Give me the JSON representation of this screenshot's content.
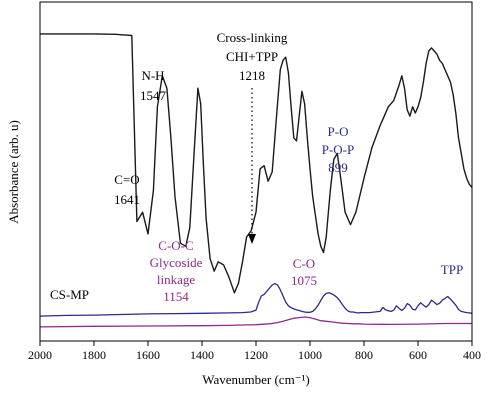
{
  "chart_data": {
    "type": "line",
    "xlabel": "Wavenumber (cm⁻¹)",
    "ylabel": "Absorbance (arb. u)",
    "xlim": [
      2000,
      400
    ],
    "x_reversed": true,
    "xticks": [
      2000,
      1800,
      1600,
      1400,
      1200,
      1000,
      800,
      600,
      400
    ],
    "yticks": [],
    "ylim": [
      0,
      1
    ],
    "grid": false,
    "colors": {
      "cs_mp": "#1a1a1a",
      "tpp": "#2b2b8c",
      "chi": "#8e2a8e"
    },
    "series": [
      {
        "name": "CS-MP",
        "color": "#1a1a1a",
        "x": [
          2000,
          1900,
          1800,
          1720,
          1690,
          1660,
          1641,
          1620,
          1600,
          1580,
          1565,
          1547,
          1530,
          1515,
          1500,
          1480,
          1460,
          1445,
          1430,
          1415,
          1405,
          1395,
          1385,
          1370,
          1355,
          1340,
          1320,
          1300,
          1280,
          1265,
          1250,
          1235,
          1218,
          1200,
          1185,
          1170,
          1155,
          1140,
          1125,
          1110,
          1100,
          1090,
          1080,
          1070,
          1060,
          1050,
          1040,
          1030,
          1020,
          1010,
          1000,
          990,
          980,
          970,
          960,
          950,
          940,
          925,
          912,
          899,
          885,
          870,
          850,
          830,
          800,
          770,
          740,
          710,
          690,
          670,
          660,
          650,
          640,
          630,
          620,
          610,
          600,
          590,
          580,
          570,
          560,
          550,
          540,
          530,
          520,
          510,
          500,
          490,
          480,
          470,
          460,
          450,
          440,
          430,
          420,
          410,
          400
        ],
        "values": [
          0.955,
          0.955,
          0.955,
          0.954,
          0.952,
          0.95,
          0.35,
          0.38,
          0.31,
          0.45,
          0.72,
          0.82,
          0.78,
          0.62,
          0.43,
          0.28,
          0.27,
          0.33,
          0.56,
          0.78,
          0.73,
          0.54,
          0.36,
          0.23,
          0.19,
          0.22,
          0.21,
          0.17,
          0.12,
          0.15,
          0.22,
          0.3,
          0.32,
          0.38,
          0.52,
          0.53,
          0.48,
          0.51,
          0.68,
          0.84,
          0.87,
          0.88,
          0.83,
          0.72,
          0.62,
          0.61,
          0.69,
          0.77,
          0.73,
          0.62,
          0.52,
          0.43,
          0.37,
          0.31,
          0.27,
          0.25,
          0.3,
          0.45,
          0.55,
          0.57,
          0.48,
          0.38,
          0.34,
          0.38,
          0.49,
          0.59,
          0.66,
          0.72,
          0.74,
          0.79,
          0.82,
          0.78,
          0.71,
          0.69,
          0.72,
          0.7,
          0.72,
          0.75,
          0.8,
          0.86,
          0.9,
          0.91,
          0.9,
          0.89,
          0.87,
          0.86,
          0.84,
          0.82,
          0.8,
          0.76,
          0.7,
          0.62,
          0.57,
          0.52,
          0.49,
          0.47,
          0.46
        ]
      },
      {
        "name": "TPP",
        "color": "#2b2b8c",
        "x": [
          2000,
          1900,
          1800,
          1700,
          1600,
          1500,
          1400,
          1300,
          1250,
          1220,
          1200,
          1190,
          1180,
          1170,
          1160,
          1150,
          1140,
          1130,
          1120,
          1110,
          1100,
          1090,
          1080,
          1070,
          1060,
          1050,
          1040,
          1030,
          1020,
          1010,
          1000,
          990,
          980,
          970,
          960,
          950,
          940,
          930,
          920,
          910,
          900,
          890,
          880,
          870,
          860,
          850,
          840,
          830,
          820,
          810,
          800,
          780,
          760,
          740,
          730,
          720,
          710,
          700,
          690,
          680,
          670,
          660,
          650,
          640,
          630,
          620,
          610,
          600,
          590,
          580,
          570,
          560,
          550,
          540,
          530,
          520,
          510,
          500,
          490,
          480,
          470,
          460,
          450,
          440,
          430,
          420,
          410,
          400
        ],
        "values": [
          0.045,
          0.047,
          0.048,
          0.05,
          0.052,
          0.053,
          0.054,
          0.055,
          0.056,
          0.058,
          0.064,
          0.09,
          0.11,
          0.115,
          0.125,
          0.135,
          0.145,
          0.15,
          0.145,
          0.13,
          0.11,
          0.09,
          0.078,
          0.072,
          0.068,
          0.065,
          0.063,
          0.06,
          0.058,
          0.057,
          0.057,
          0.06,
          0.068,
          0.08,
          0.095,
          0.11,
          0.118,
          0.12,
          0.117,
          0.112,
          0.105,
          0.095,
          0.082,
          0.07,
          0.062,
          0.058,
          0.058,
          0.056,
          0.055,
          0.056,
          0.056,
          0.056,
          0.058,
          0.06,
          0.073,
          0.065,
          0.062,
          0.06,
          0.064,
          0.078,
          0.07,
          0.063,
          0.07,
          0.085,
          0.08,
          0.067,
          0.065,
          0.078,
          0.088,
          0.08,
          0.074,
          0.082,
          0.096,
          0.09,
          0.082,
          0.086,
          0.096,
          0.102,
          0.108,
          0.1,
          0.09,
          0.08,
          0.066,
          0.06,
          0.058,
          0.056,
          0.055,
          0.054
        ]
      },
      {
        "name": "",
        "color": "#8e2a8e",
        "x": [
          2000,
          1800,
          1600,
          1400,
          1300,
          1250,
          1200,
          1150,
          1120,
          1100,
          1080,
          1060,
          1040,
          1020,
          1000,
          980,
          960,
          940,
          920,
          900,
          880,
          860,
          840,
          820,
          800,
          700,
          600,
          500,
          400
        ],
        "values": [
          0.01,
          0.012,
          0.013,
          0.014,
          0.015,
          0.016,
          0.017,
          0.02,
          0.024,
          0.028,
          0.033,
          0.038,
          0.04,
          0.042,
          0.04,
          0.035,
          0.03,
          0.028,
          0.026,
          0.024,
          0.022,
          0.021,
          0.02,
          0.02,
          0.019,
          0.018,
          0.019,
          0.021,
          0.021
        ]
      }
    ],
    "annotations": [
      {
        "id": "c-o",
        "lines": [
          "C=O",
          "1641"
        ],
        "color": "#000000"
      },
      {
        "id": "n-h",
        "lines": [
          "N-H",
          "1547"
        ],
        "color": "#000000"
      },
      {
        "id": "crosslink",
        "lines": [
          "Cross-linking",
          "CHI+TPP",
          "1218"
        ],
        "color": "#000000"
      },
      {
        "id": "p-o",
        "lines": [
          "P-O",
          "P-O-P",
          "899"
        ],
        "color": "#2b2b8c"
      },
      {
        "id": "c-o-c",
        "lines": [
          "C-O-C",
          "Glycoside",
          "linkage",
          "1154"
        ],
        "color": "#8e2a8e"
      },
      {
        "id": "c-o-1075",
        "lines": [
          "C-O",
          "1075"
        ],
        "color": "#8e2a8e"
      },
      {
        "id": "tpp",
        "lines": [
          "TPP"
        ],
        "color": "#2b2b8c"
      },
      {
        "id": "cs-mp",
        "lines": [
          "CS-MP"
        ],
        "color": "#000000"
      }
    ]
  }
}
